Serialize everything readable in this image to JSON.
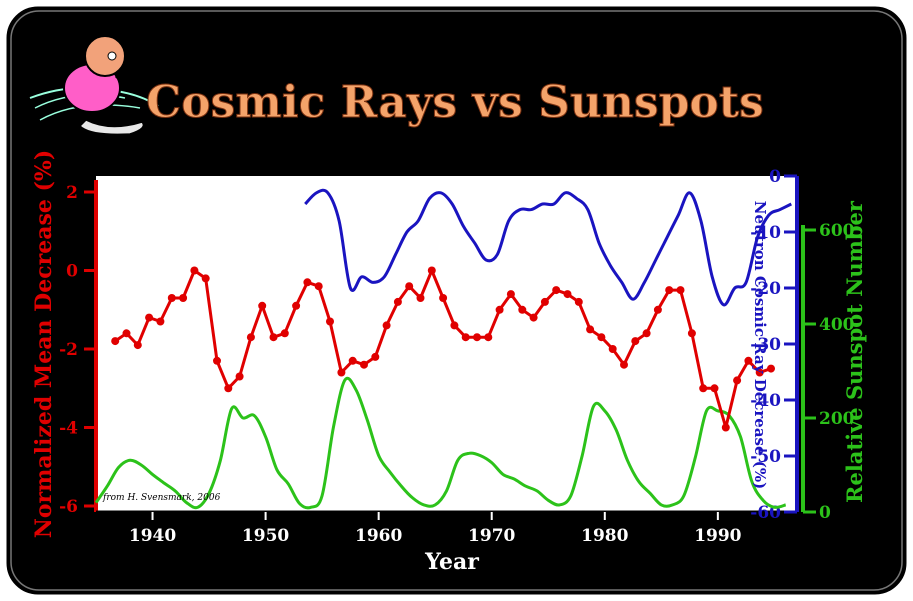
{
  "title": "Cosmic Rays vs Sunspots",
  "credit": "from H. Svensmark, 2006",
  "colors": {
    "background": "#000000",
    "frame": "#ffffff",
    "title": "#f4a36a",
    "red": "#e00000",
    "blue": "#1a14c0",
    "green": "#2cc21a"
  },
  "chart_data": {
    "type": "line",
    "xlabel": "Year",
    "x_ticks": [
      1940,
      1950,
      1960,
      1970,
      1980,
      1990
    ],
    "xlim": [
      1935,
      1997
    ],
    "axes": {
      "left": {
        "label": "Normalized Mean Decrease (%)",
        "ticks": [
          2,
          0,
          -2,
          -4,
          -6
        ],
        "lim": [
          -6,
          2.5
        ]
      },
      "right_blue": {
        "label": "Neutron Cosmic Ray Decrease (%)",
        "ticks": [
          0,
          -10,
          -20,
          -30,
          -40,
          -50,
          -60
        ],
        "lim": [
          -60,
          0
        ]
      },
      "right_green": {
        "label": "Relative Sunspot Number",
        "ticks": [
          600,
          400,
          200,
          0
        ],
        "lim": [
          0,
          700
        ]
      }
    },
    "series": [
      {
        "axis": "left",
        "x": [
          1936.7,
          1937.7,
          1938.7,
          1939.7,
          1940.7,
          1941.7,
          1942.7,
          1943.7,
          1944.7,
          1945.7,
          1946.7,
          1947.7,
          1948.7,
          1949.7,
          1950.7,
          1951.7,
          1952.7,
          1953.7,
          1954.7,
          1955.7,
          1956.7,
          1957.7,
          1958.7,
          1959.7,
          1960.7,
          1961.7,
          1962.7,
          1963.7,
          1964.7,
          1965.7,
          1966.7,
          1967.7,
          1968.7,
          1969.7,
          1970.7,
          1971.7,
          1972.7,
          1973.7,
          1974.7,
          1975.7,
          1976.7,
          1977.7,
          1978.7,
          1979.7,
          1980.7,
          1981.7,
          1982.7,
          1983.7,
          1984.7,
          1985.7,
          1986.7,
          1987.7,
          1988.7,
          1989.7,
          1990.7,
          1991.7,
          1992.7,
          1993.7,
          1994.7
        ],
        "values": [
          -1.8,
          -1.6,
          -1.9,
          -1.2,
          -1.3,
          -0.7,
          -0.7,
          0.0,
          -0.2,
          -2.3,
          -3.0,
          -2.7,
          -1.7,
          -0.9,
          -1.7,
          -1.6,
          -0.9,
          -0.3,
          -0.4,
          -1.3,
          -2.6,
          -2.3,
          -2.4,
          -2.2,
          -1.4,
          -0.8,
          -0.4,
          -0.7,
          0.0,
          -0.7,
          -1.4,
          -1.7,
          -1.7,
          -1.7,
          -1.0,
          -0.6,
          -1.0,
          -1.2,
          -0.8,
          -0.5,
          -0.6,
          -0.8,
          -1.5,
          -1.7,
          -2.0,
          -2.4,
          -1.8,
          -1.6,
          -1.0,
          -0.5,
          -0.5,
          -1.6,
          -3.0,
          -3.0,
          -4.0,
          -2.8,
          -2.3,
          -2.6,
          -2.5
        ]
      },
      {
        "axis": "right_blue",
        "x": [
          1953.5,
          1954.5,
          1955.5,
          1956.5,
          1957.5,
          1958.5,
          1959.5,
          1960.5,
          1961.5,
          1962.5,
          1963.5,
          1964.5,
          1965.5,
          1966.5,
          1967.5,
          1968.5,
          1969.5,
          1970.5,
          1971.5,
          1972.5,
          1973.5,
          1974.5,
          1975.5,
          1976.5,
          1977.5,
          1978.5,
          1979.5,
          1980.5,
          1981.5,
          1982.5,
          1983.5,
          1984.5,
          1985.5,
          1986.5,
          1987.5,
          1988.5,
          1989.5,
          1990.5,
          1991.5,
          1992.5,
          1993.5,
          1994.5,
          1995.5,
          1996.5
        ],
        "values": [
          -5,
          -3,
          -3,
          -8,
          -20,
          -18,
          -19,
          -18,
          -14,
          -10,
          -8,
          -4,
          -3,
          -5,
          -9,
          -12,
          -15,
          -14,
          -8,
          -6,
          -6,
          -5,
          -5,
          -3,
          -4,
          -6,
          -12,
          -16,
          -19,
          -22,
          -19,
          -15,
          -11,
          -7,
          -3,
          -8,
          -18,
          -23,
          -20,
          -19,
          -11,
          -7,
          -6,
          -5
        ]
      },
      {
        "axis": "right_green",
        "x": [
          1935,
          1936,
          1937,
          1938,
          1939,
          1940,
          1941,
          1942,
          1943,
          1944,
          1945,
          1946,
          1947,
          1948,
          1949,
          1950,
          1951,
          1952,
          1953,
          1954,
          1955,
          1956,
          1957,
          1958,
          1959,
          1960,
          1961,
          1962,
          1963,
          1964,
          1965,
          1966,
          1967,
          1968,
          1969,
          1970,
          1971,
          1972,
          1973,
          1974,
          1975,
          1976,
          1977,
          1978,
          1979,
          1980,
          1981,
          1982,
          1983,
          1984,
          1985,
          1986,
          1987,
          1988,
          1989,
          1990,
          1991,
          1992,
          1993,
          1994,
          1995,
          1996
        ],
        "values": [
          20,
          55,
          95,
          110,
          100,
          80,
          62,
          45,
          20,
          10,
          40,
          110,
          220,
          200,
          205,
          160,
          90,
          60,
          18,
          10,
          35,
          180,
          280,
          260,
          195,
          120,
          85,
          55,
          30,
          15,
          15,
          45,
          110,
          125,
          120,
          105,
          80,
          70,
          55,
          45,
          25,
          15,
          35,
          120,
          225,
          215,
          175,
          110,
          65,
          40,
          15,
          15,
          35,
          115,
          215,
          215,
          205,
          160,
          65,
          25,
          10,
          15
        ]
      }
    ]
  }
}
